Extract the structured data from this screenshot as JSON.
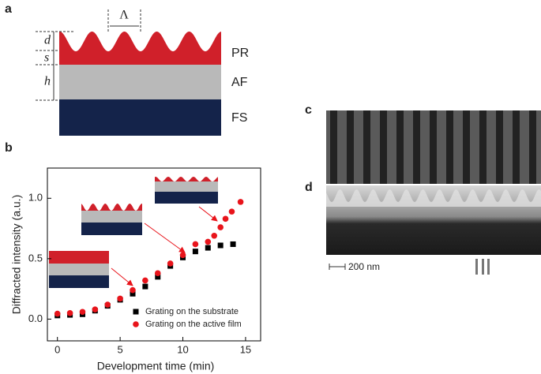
{
  "panel_labels": [
    "a",
    "b",
    "c",
    "d"
  ],
  "schematic": {
    "dims": [
      "d",
      "s",
      "h"
    ],
    "period": "Λ",
    "layers": [
      "PR",
      "AF",
      "FS"
    ]
  },
  "scale_bar": "200 nm",
  "chart_data": {
    "type": "scatter",
    "x_label": "Development time (min)",
    "y_label": "Diffracted intensity (a.u.)",
    "xlim": [
      -0.8,
      16.2
    ],
    "ylim": [
      -0.18,
      1.25
    ],
    "xticks": [
      0,
      5,
      10,
      15
    ],
    "yticks": [
      {
        "value": 0,
        "label": "0.0"
      },
      0.5,
      {
        "value": 1,
        "label": "1.0"
      }
    ],
    "legend": "lower right",
    "series": [
      {
        "name": "Grating on the substrate",
        "color": "#000000",
        "marker": "square",
        "x": [
          0,
          1,
          2,
          3,
          4,
          5,
          6,
          7,
          8,
          9,
          10,
          11,
          12,
          13,
          14
        ],
        "values": [
          0.03,
          0.035,
          0.04,
          0.07,
          0.11,
          0.16,
          0.21,
          0.27,
          0.35,
          0.44,
          0.51,
          0.56,
          0.59,
          0.61,
          0.62
        ]
      },
      {
        "name": "Grating on the active film",
        "color": "#e8141b",
        "marker": "circle",
        "x": [
          0,
          1,
          2,
          3,
          4,
          5,
          6,
          7,
          8,
          9,
          10,
          11,
          12,
          12.5,
          13,
          13.4,
          13.9,
          14.6
        ],
        "values": [
          0.045,
          0.05,
          0.06,
          0.08,
          0.12,
          0.17,
          0.24,
          0.32,
          0.38,
          0.46,
          0.53,
          0.62,
          0.64,
          0.69,
          0.76,
          0.83,
          0.89,
          0.97
        ]
      }
    ]
  }
}
